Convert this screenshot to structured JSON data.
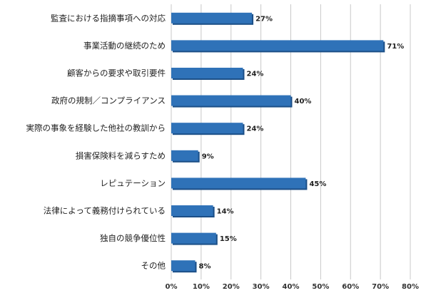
{
  "chart_data": {
    "type": "bar",
    "orientation": "horizontal",
    "categories": [
      "監査における指摘事項への対応",
      "事業活動の継続のため",
      "顧客からの要求や取引要件",
      "政府の規制／コンプライアンス",
      "実際の事象を経験した他社の教訓から",
      "損害保険料を減らすため",
      "レピュテーション",
      "法律によって義務付けられている",
      "独自の競争優位性",
      "その他"
    ],
    "values": [
      27,
      71,
      24,
      40,
      24,
      9,
      45,
      14,
      15,
      8
    ],
    "data_labels": [
      "27%",
      "71%",
      "24%",
      "40%",
      "24%",
      "9%",
      "45%",
      "14%",
      "15%",
      "8%"
    ],
    "xlim": [
      0,
      80
    ],
    "xticks": [
      0,
      10,
      20,
      30,
      40,
      50,
      60,
      70,
      80
    ],
    "xtick_labels": [
      "0%",
      "10%",
      "20%",
      "30%",
      "40%",
      "50%",
      "60%",
      "70%",
      "80%"
    ],
    "grid": true,
    "bar_color": "#2f72b8",
    "bar_shadow_color": "#1c4f87"
  }
}
